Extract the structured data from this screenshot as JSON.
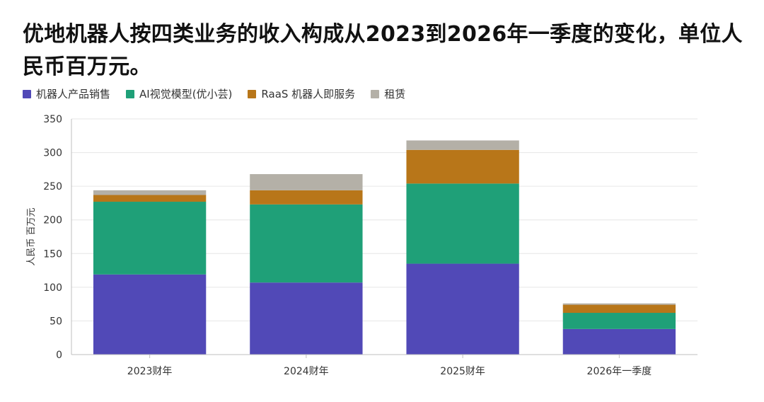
{
  "colors": {
    "robot_products": "#5149b7",
    "ai_vision": "#1fa078",
    "raas": "#b87619",
    "rental": "#b4b0a7",
    "grid": "#e6e6e6",
    "axis": "#bfbfbf"
  },
  "chart_data": {
    "type": "bar",
    "stacked": true,
    "title": "优地机器人按四类业务的收入构成从2023到2026年一季度的变化，单位人民币百万元。",
    "xlabel": "",
    "ylabel": "人民币 百万元",
    "ylim": [
      0,
      350
    ],
    "yticks": [
      0,
      50,
      100,
      150,
      200,
      250,
      300,
      350
    ],
    "grid": true,
    "legend_position": "top-left",
    "categories": [
      "2023财年",
      "2024财年",
      "2025财年",
      "2026年一季度"
    ],
    "series": [
      {
        "name": "机器人产品销售",
        "color": "#5149b7",
        "values": [
          119,
          107,
          135,
          38
        ]
      },
      {
        "name": "AI视觉模型(优小芸)",
        "color": "#1fa078",
        "values": [
          108,
          116,
          119,
          24
        ]
      },
      {
        "name": "RaaS 机器人即服务",
        "color": "#b87619",
        "values": [
          10,
          21,
          50,
          12
        ]
      },
      {
        "name": "租赁",
        "color": "#b4b0a7",
        "values": [
          7,
          24,
          14,
          2
        ]
      }
    ]
  }
}
